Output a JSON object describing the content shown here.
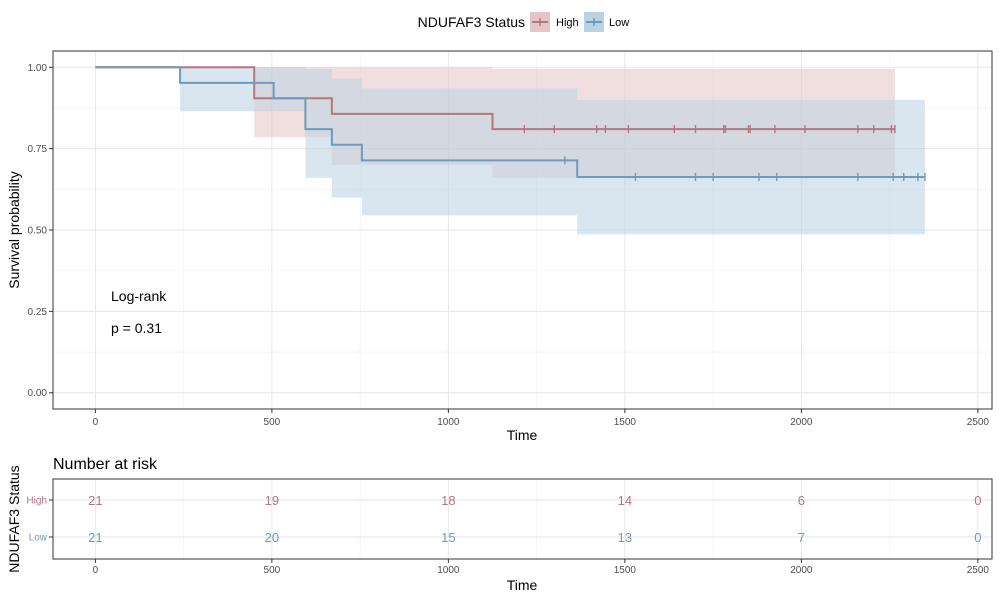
{
  "chart_data": [
    {
      "type": "line",
      "subtype": "kaplan-meier",
      "title": "",
      "xlabel": "Time",
      "ylabel": "Survival probability",
      "xlim": [
        -120,
        2540
      ],
      "ylim": [
        -0.05,
        1.05
      ],
      "x_ticks": [
        0,
        500,
        1000,
        1500,
        2000,
        2500
      ],
      "y_ticks": [
        0.0,
        0.25,
        0.5,
        0.75,
        1.0
      ],
      "y_tick_labels": [
        "0.00",
        "0.25",
        "0.50",
        "0.75",
        "1.00"
      ],
      "grid": true,
      "legend": {
        "title": "NDUFAF3 Status",
        "position": "top"
      },
      "annotation": {
        "line1": "Log-rank",
        "line2": "p = 0.31"
      },
      "series": [
        {
          "name": "High",
          "color": "#b5767d",
          "band_color": "#e5c5c7",
          "steps": [
            [
              0,
              1.0
            ],
            [
              450,
              0.905
            ],
            [
              670,
              0.857
            ],
            [
              1125,
              0.81
            ],
            [
              2265,
              0.81
            ]
          ],
          "lower": [
            [
              0,
              1.0
            ],
            [
              450,
              0.785
            ],
            [
              500,
              0.785
            ],
            [
              670,
              0.7
            ],
            [
              1125,
              0.66
            ],
            [
              2265,
              0.66
            ]
          ],
          "upper": [
            [
              0,
              1.0
            ],
            [
              1125,
              1.0
            ],
            [
              1125,
              0.995
            ],
            [
              2265,
              0.995
            ]
          ],
          "censored": [
            1215,
            1300,
            1420,
            1445,
            1510,
            1640,
            1700,
            1780,
            1785,
            1850,
            1855,
            1925,
            2010,
            2160,
            2205,
            2255,
            2265
          ]
        },
        {
          "name": "Low",
          "color": "#6e9bbd",
          "band_color": "#bad2e1",
          "steps": [
            [
              0,
              1.0
            ],
            [
              240,
              0.952
            ],
            [
              505,
              0.905
            ],
            [
              595,
              0.81
            ],
            [
              670,
              0.762
            ],
            [
              755,
              0.714
            ],
            [
              1365,
              0.663
            ],
            [
              2350,
              0.663
            ]
          ],
          "lower": [
            [
              0,
              1.0
            ],
            [
              240,
              0.865
            ],
            [
              595,
              0.66
            ],
            [
              670,
              0.6
            ],
            [
              755,
              0.545
            ],
            [
              1365,
              0.487
            ],
            [
              2350,
              0.487
            ]
          ],
          "upper": [
            [
              0,
              1.0
            ],
            [
              240,
              1.0
            ],
            [
              595,
              0.995
            ],
            [
              670,
              0.965
            ],
            [
              755,
              0.935
            ],
            [
              1365,
              0.9
            ],
            [
              2350,
              0.9
            ]
          ],
          "censored": [
            1330,
            1530,
            1700,
            1750,
            1880,
            1930,
            2160,
            2260,
            2290,
            2330,
            2350
          ]
        }
      ]
    },
    {
      "type": "table",
      "title": "Number at risk",
      "xlabel": "Time",
      "ylabel": "NDUFAF3 Status",
      "xlim": [
        -120,
        2540
      ],
      "x_ticks": [
        0,
        500,
        1000,
        1500,
        2000,
        2500
      ],
      "rows": [
        {
          "name": "High",
          "color": "#b5767d",
          "values": [
            21,
            19,
            18,
            14,
            6,
            0
          ]
        },
        {
          "name": "Low",
          "color": "#6e9bbd",
          "values": [
            21,
            20,
            15,
            13,
            7,
            0
          ]
        }
      ]
    }
  ]
}
